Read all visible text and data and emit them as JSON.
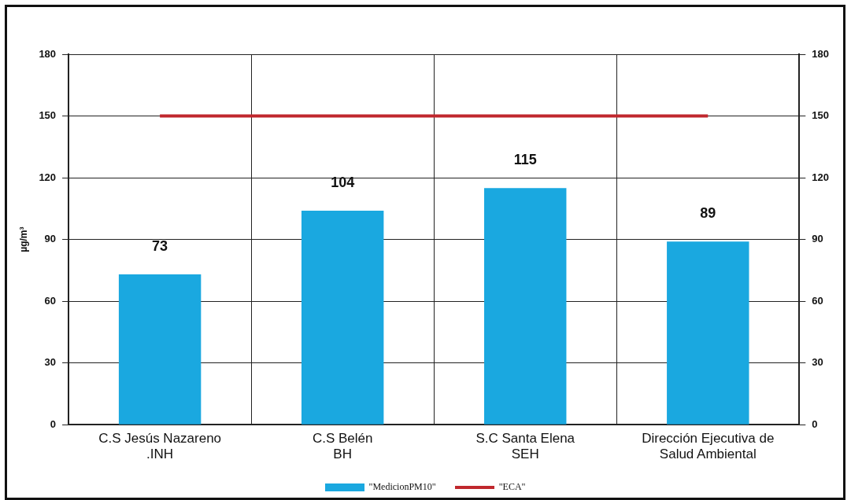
{
  "chart_data": {
    "type": "bar",
    "ylabel": "µg/m³",
    "categories": [
      "C.S Jesús Nazareno\n.INH",
      "C.S Belén\nBH",
      "S.C Santa Elena\nSEH",
      "Dirección Ejecutiva de\nSalud Ambiental"
    ],
    "series": [
      {
        "name": "\"MedicionPM10\"",
        "color": "#1aa8e0",
        "values": [
          73,
          104,
          115,
          89
        ],
        "value_labels": [
          "73",
          "104",
          "115",
          "89"
        ]
      },
      {
        "name": "\"ECA\"",
        "type": "line",
        "color": "#c0272d",
        "values": [
          150,
          150,
          150,
          150
        ]
      }
    ],
    "ylim": [
      0,
      180
    ],
    "yticks": [
      0,
      30,
      60,
      90,
      120,
      150,
      180
    ],
    "y2lim": [
      0,
      180
    ],
    "y2ticks": [
      0,
      30,
      60,
      90,
      120,
      150,
      180
    ],
    "grid": true,
    "legend": "bottom",
    "marker": "none",
    "line_style": "solid"
  }
}
